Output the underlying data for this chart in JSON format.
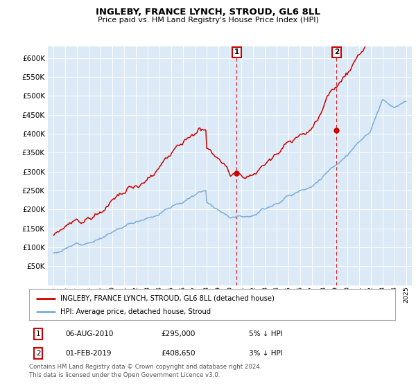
{
  "title": "INGLEBY, FRANCE LYNCH, STROUD, GL6 8LL",
  "subtitle": "Price paid vs. HM Land Registry's House Price Index (HPI)",
  "ylim": [
    0,
    630000
  ],
  "yticks": [
    50000,
    100000,
    150000,
    200000,
    250000,
    300000,
    350000,
    400000,
    450000,
    500000,
    550000,
    600000
  ],
  "bg_color": "#dbeaf6",
  "legend_label_red": "INGLEBY, FRANCE LYNCH, STROUD, GL6 8LL (detached house)",
  "legend_label_blue": "HPI: Average price, detached house, Stroud",
  "annotation1": {
    "num": "1",
    "date": "06-AUG-2010",
    "price": "£295,000",
    "pct": "5% ↓ HPI"
  },
  "annotation2": {
    "num": "2",
    "date": "01-FEB-2019",
    "price": "£408,650",
    "pct": "3% ↓ HPI"
  },
  "footer": "Contains HM Land Registry data © Crown copyright and database right 2024.\nThis data is licensed under the Open Government Licence v3.0.",
  "red_color": "#cc0000",
  "blue_color": "#7aacda",
  "sale1_year": 2010.58,
  "sale1_value": 295000,
  "sale2_year": 2019.08,
  "sale2_value": 408650,
  "xlim_left": 1994.5,
  "xlim_right": 2025.5
}
